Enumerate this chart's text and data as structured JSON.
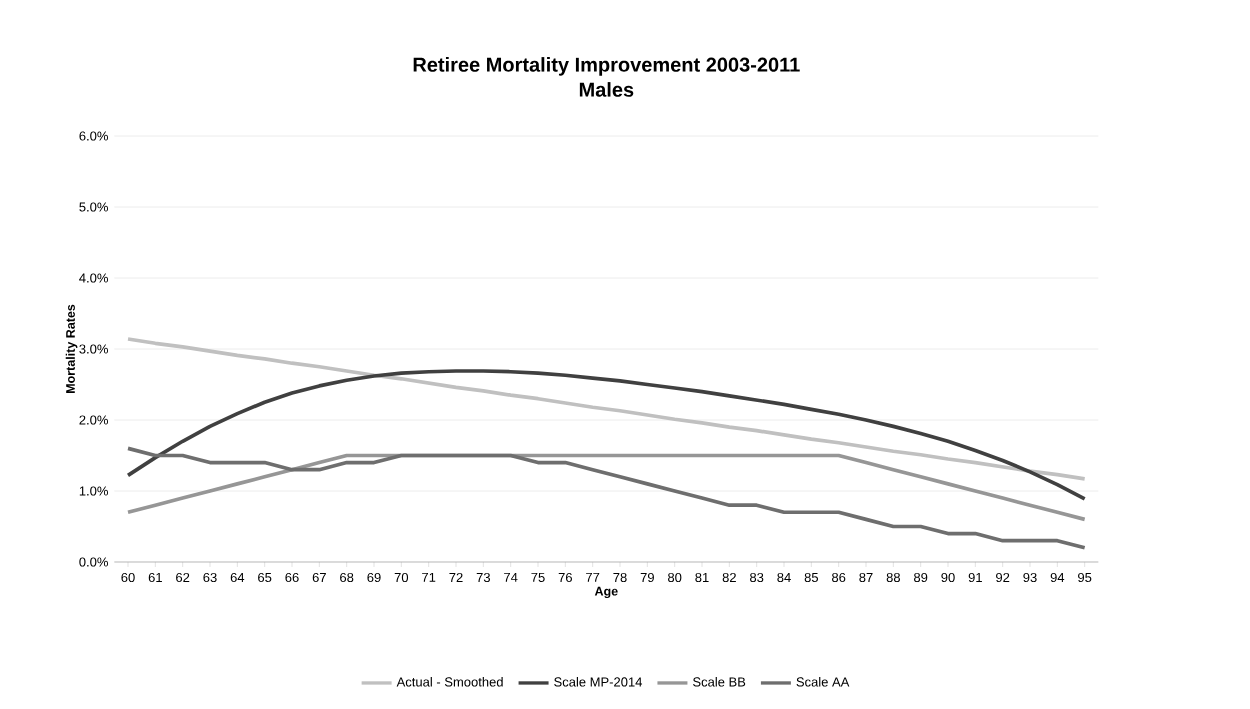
{
  "chart_data": {
    "type": "line",
    "title": "Retiree Mortality Improvement 2003-2011",
    "subtitle": "Males",
    "xlabel": "Age",
    "ylabel": "Mortality Rates",
    "categories": [
      "60",
      "61",
      "62",
      "63",
      "64",
      "65",
      "66",
      "67",
      "68",
      "69",
      "70",
      "71",
      "72",
      "73",
      "74",
      "75",
      "76",
      "77",
      "78",
      "79",
      "80",
      "81",
      "82",
      "83",
      "84",
      "85",
      "86",
      "87",
      "88",
      "89",
      "90",
      "91",
      "92",
      "93",
      "94",
      "95"
    ],
    "ylim": [
      0,
      6
    ],
    "yticks": [
      {
        "value": 0,
        "label": "0.0%"
      },
      {
        "value": 1,
        "label": "1.0%"
      },
      {
        "value": 2,
        "label": "2.0%"
      },
      {
        "value": 3,
        "label": "3.0%"
      },
      {
        "value": 4,
        "label": "4.0%"
      },
      {
        "value": 5,
        "label": "5.0%"
      },
      {
        "value": 6,
        "label": "6.0%"
      }
    ],
    "grid": "y",
    "legend": "bottom",
    "series": [
      {
        "name": "Actual - Smoothed",
        "color": "#c0c0c0",
        "values": [
          3.14,
          3.08,
          3.03,
          2.97,
          2.91,
          2.86,
          2.8,
          2.75,
          2.69,
          2.63,
          2.58,
          2.52,
          2.46,
          2.41,
          2.35,
          2.3,
          2.24,
          2.18,
          2.13,
          2.07,
          2.01,
          1.96,
          1.9,
          1.85,
          1.79,
          1.73,
          1.68,
          1.62,
          1.56,
          1.51,
          1.45,
          1.4,
          1.34,
          1.28,
          1.23,
          1.17
        ]
      },
      {
        "name": "Scale MP-2014",
        "color": "#404040",
        "values": [
          1.22,
          1.47,
          1.7,
          1.91,
          2.09,
          2.25,
          2.38,
          2.48,
          2.56,
          2.62,
          2.66,
          2.68,
          2.69,
          2.69,
          2.68,
          2.66,
          2.63,
          2.59,
          2.55,
          2.5,
          2.45,
          2.4,
          2.34,
          2.28,
          2.22,
          2.15,
          2.08,
          2.0,
          1.91,
          1.81,
          1.7,
          1.57,
          1.43,
          1.27,
          1.09,
          0.89
        ]
      },
      {
        "name": "Scale BB",
        "color": "#969696",
        "values": [
          0.7,
          0.8,
          0.9,
          1.0,
          1.1,
          1.2,
          1.3,
          1.4,
          1.5,
          1.5,
          1.5,
          1.5,
          1.5,
          1.5,
          1.5,
          1.5,
          1.5,
          1.5,
          1.5,
          1.5,
          1.5,
          1.5,
          1.5,
          1.5,
          1.5,
          1.5,
          1.5,
          1.4,
          1.3,
          1.2,
          1.1,
          1.0,
          0.9,
          0.8,
          0.7,
          0.6
        ]
      },
      {
        "name": "Scale AA",
        "color": "#6e6e6e",
        "values": [
          1.6,
          1.5,
          1.5,
          1.4,
          1.4,
          1.4,
          1.3,
          1.3,
          1.4,
          1.4,
          1.5,
          1.5,
          1.5,
          1.5,
          1.5,
          1.4,
          1.4,
          1.3,
          1.2,
          1.1,
          1.0,
          0.9,
          0.8,
          0.8,
          0.7,
          0.7,
          0.7,
          0.6,
          0.5,
          0.5,
          0.4,
          0.4,
          0.3,
          0.3,
          0.3,
          0.2
        ]
      }
    ]
  }
}
